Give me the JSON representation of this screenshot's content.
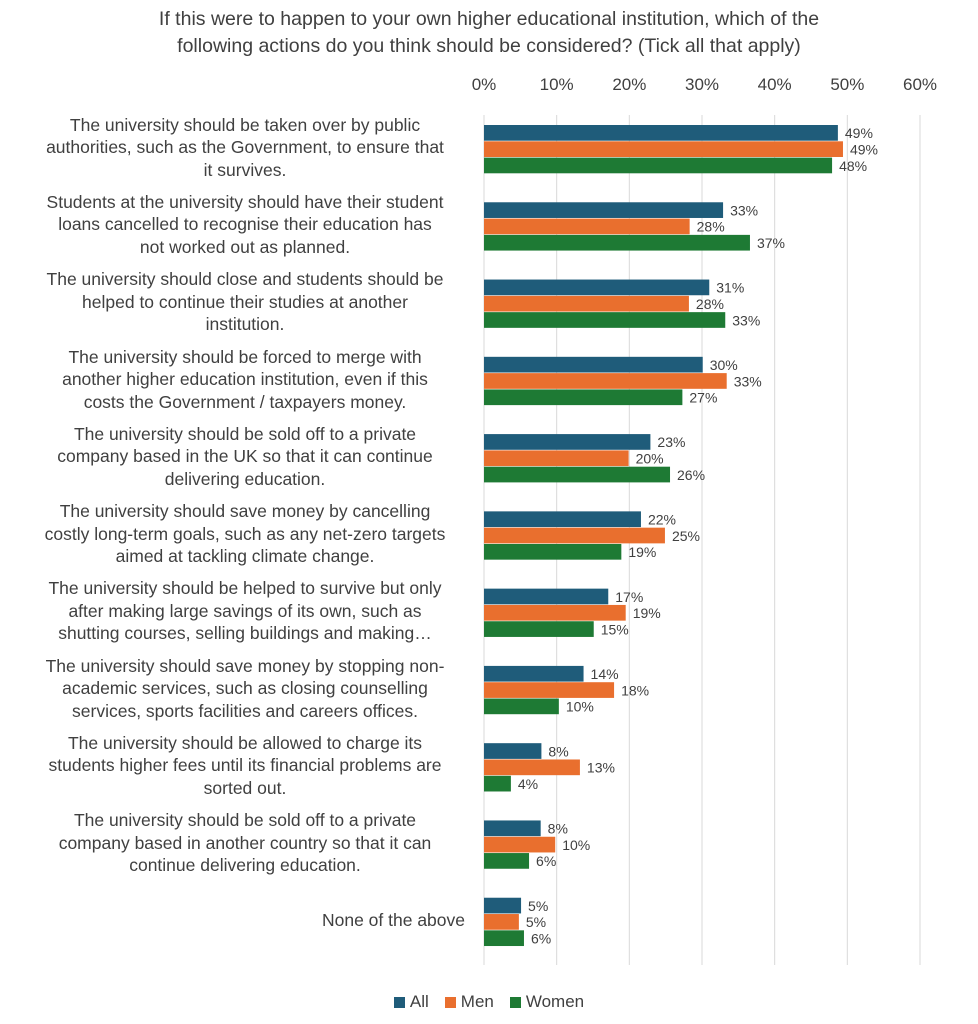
{
  "chart_data": {
    "type": "bar",
    "orientation": "horizontal",
    "title_lines": [
      "If this were to happen to your own higher educational institution, which of the",
      "following actions do you think should be considered? (Tick all that apply)"
    ],
    "x_ticks": [
      "0%",
      "10%",
      "20%",
      "30%",
      "40%",
      "50%",
      "60%"
    ],
    "xlim": [
      0,
      60
    ],
    "grid": true,
    "legend_position": "bottom",
    "categories": [
      [
        "The university should be taken over by public",
        "authorities, such as the Government, to ensure that",
        "it survives."
      ],
      [
        "Students at the university should have their student",
        "loans cancelled to recognise their education has",
        "not worked out as planned."
      ],
      [
        "The university should close and students should be",
        "helped to continue their studies at another",
        "institution."
      ],
      [
        "The university should be forced to merge with",
        "another higher education institution, even if this",
        "costs the Government / taxpayers money."
      ],
      [
        "The university should be sold off to a private",
        "company based in the UK so that it can continue",
        "delivering education."
      ],
      [
        "The university should save money by cancelling",
        "costly long-term goals, such as any net-zero targets",
        "aimed at tackling climate change."
      ],
      [
        "The university should be helped to survive but only",
        "after making large savings of its own, such as",
        "shutting courses, selling buildings and making…"
      ],
      [
        "The university should save money by stopping non-",
        "academic services, such as closing counselling",
        "services, sports facilities and careers offices."
      ],
      [
        "The university should be allowed to charge its",
        "students higher fees until its financial problems are",
        "sorted out."
      ],
      [
        "The university should be sold off to a private",
        "company based in another country so that it can",
        "continue delivering education."
      ],
      [
        "None of the above"
      ]
    ],
    "series": [
      {
        "name": "All",
        "color": "#1f5c7a",
        "values": [
          48.7,
          32.9,
          31.0,
          30.1,
          22.9,
          21.6,
          17.1,
          13.7,
          7.9,
          7.8,
          5.1
        ],
        "labels": [
          "49%",
          "33%",
          "31%",
          "30%",
          "23%",
          "22%",
          "17%",
          "14%",
          "8%",
          "8%",
          "5%"
        ]
      },
      {
        "name": "Men",
        "color": "#e96f2e",
        "values": [
          49.4,
          28.3,
          28.2,
          33.4,
          19.9,
          24.9,
          19.5,
          17.9,
          13.2,
          9.8,
          4.8
        ],
        "labels": [
          "49%",
          "28%",
          "28%",
          "33%",
          "20%",
          "25%",
          "19%",
          "18%",
          "13%",
          "10%",
          "5%"
        ]
      },
      {
        "name": "Women",
        "color": "#1e7a34",
        "values": [
          47.9,
          36.6,
          33.2,
          27.3,
          25.6,
          18.9,
          15.1,
          10.3,
          3.7,
          6.2,
          5.5
        ],
        "labels": [
          "48%",
          "37%",
          "33%",
          "27%",
          "26%",
          "19%",
          "15%",
          "10%",
          "4%",
          "6%",
          "6%"
        ]
      }
    ]
  }
}
